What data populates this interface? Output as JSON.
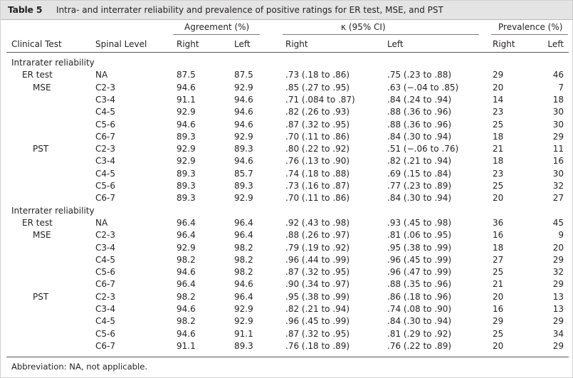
{
  "table": {
    "label": "Table 5",
    "title": "Intra- and interrater reliability and prevalence of positive ratings for ER test, MSE, and PST",
    "group_headers": {
      "agreement": "Agreement (%)",
      "kappa": "κ (95% CI)",
      "prevalence": "Prevalence (%)"
    },
    "columns": [
      "Clinical Test",
      "Spinal Level",
      "Right",
      "Left",
      "Right",
      "Left",
      "Right",
      "Left"
    ],
    "sections": [
      {
        "heading": "Intrarater reliability",
        "rows": [
          {
            "test": "ER test",
            "level": "NA",
            "ag_r": "87.5",
            "ag_l": "87.5",
            "k_r": ".73 (.18 to .86)",
            "k_l": ".75 (.23 to .88)",
            "p_r": "29",
            "p_l": "46"
          },
          {
            "test": "MSE",
            "level": "C2-3",
            "ag_r": "94.6",
            "ag_l": "92.9",
            "k_r": ".85 (.27 to .95)",
            "k_l": ".63 (−.04 to .85)",
            "p_r": "20",
            "p_l": "7"
          },
          {
            "test": "",
            "level": "C3-4",
            "ag_r": "91.1",
            "ag_l": "94.6",
            "k_r": ".71 (.084 to .87)",
            "k_l": ".84 (.24 to .94)",
            "p_r": "14",
            "p_l": "18"
          },
          {
            "test": "",
            "level": "C4-5",
            "ag_r": "92.9",
            "ag_l": "94.6",
            "k_r": ".82 (.26 to .93)",
            "k_l": ".88 (.36 to .96)",
            "p_r": "23",
            "p_l": "30"
          },
          {
            "test": "",
            "level": "C5-6",
            "ag_r": "94.6",
            "ag_l": "94.6",
            "k_r": ".87 (.32 to .95)",
            "k_l": ".88 (.36 to .96)",
            "p_r": "25",
            "p_l": "30"
          },
          {
            "test": "",
            "level": "C6-7",
            "ag_r": "89.3",
            "ag_l": "92.9",
            "k_r": ".70 (.11 to .86)",
            "k_l": ".84 (.30 to .94)",
            "p_r": "18",
            "p_l": "29"
          },
          {
            "test": "PST",
            "level": "C2-3",
            "ag_r": "92.9",
            "ag_l": "89.3",
            "k_r": ".80 (.22 to .92)",
            "k_l": ".51 (−.06 to .76)",
            "p_r": "21",
            "p_l": "11"
          },
          {
            "test": "",
            "level": "C3-4",
            "ag_r": "92.9",
            "ag_l": "94.6",
            "k_r": ".76 (.13 to .90)",
            "k_l": ".82 (.21 to .94)",
            "p_r": "18",
            "p_l": "16"
          },
          {
            "test": "",
            "level": "C4-5",
            "ag_r": "89.3",
            "ag_l": "85.7",
            "k_r": ".74 (.18 to .88)",
            "k_l": ".69 (.15 to .84)",
            "p_r": "23",
            "p_l": "30"
          },
          {
            "test": "",
            "level": "C5-6",
            "ag_r": "89.3",
            "ag_l": "89.3",
            "k_r": ".73 (.16 to .87)",
            "k_l": ".77 (.23 to .89)",
            "p_r": "25",
            "p_l": "32"
          },
          {
            "test": "",
            "level": "C6-7",
            "ag_r": "89.3",
            "ag_l": "92.9",
            "k_r": ".70 (.11 to .86)",
            "k_l": ".84 (.30 to .94)",
            "p_r": "20",
            "p_l": "27"
          }
        ]
      },
      {
        "heading": "Interrater reliability",
        "rows": [
          {
            "test": "ER test",
            "level": "NA",
            "ag_r": "96.4",
            "ag_l": "96.4",
            "k_r": ".92 (.43 to .98)",
            "k_l": ".93 (.45 to .98)",
            "p_r": "36",
            "p_l": "45"
          },
          {
            "test": "MSE",
            "level": "C2-3",
            "ag_r": "96.4",
            "ag_l": "96.4",
            "k_r": ".88 (.26 to .97)",
            "k_l": ".81 (.06 to .95)",
            "p_r": "16",
            "p_l": "9"
          },
          {
            "test": "",
            "level": "C3-4",
            "ag_r": "92.9",
            "ag_l": "98.2",
            "k_r": ".79 (.19 to .92)",
            "k_l": ".95 (.38 to .99)",
            "p_r": "18",
            "p_l": "20"
          },
          {
            "test": "",
            "level": "C4-5",
            "ag_r": "98.2",
            "ag_l": "98.2",
            "k_r": ".96 (.44 to .99)",
            "k_l": ".96 (.45 to .99)",
            "p_r": "27",
            "p_l": "29"
          },
          {
            "test": "",
            "level": "C5-6",
            "ag_r": "94.6",
            "ag_l": "98.2",
            "k_r": ".87 (.32 to .95)",
            "k_l": ".96 (.47 to .99)",
            "p_r": "25",
            "p_l": "32"
          },
          {
            "test": "",
            "level": "C6-7",
            "ag_r": "96.4",
            "ag_l": "94.6",
            "k_r": ".90 (.34 to .97)",
            "k_l": ".88 (.35 to .96)",
            "p_r": "21",
            "p_l": "29"
          },
          {
            "test": "PST",
            "level": "C2-3",
            "ag_r": "98.2",
            "ag_l": "96.4",
            "k_r": ".95 (.38 to .99)",
            "k_l": ".86 (.18 to .96)",
            "p_r": "20",
            "p_l": "13"
          },
          {
            "test": "",
            "level": "C3-4",
            "ag_r": "94.6",
            "ag_l": "92.9",
            "k_r": ".82 (.21 to .94)",
            "k_l": ".74 (.08 to .90)",
            "p_r": "16",
            "p_l": "13"
          },
          {
            "test": "",
            "level": "C4-5",
            "ag_r": "98.2",
            "ag_l": "92.9",
            "k_r": ".96 (.45 to .99)",
            "k_l": ".84 (.30 to .94)",
            "p_r": "29",
            "p_l": "29"
          },
          {
            "test": "",
            "level": "C5-6",
            "ag_r": "94.6",
            "ag_l": "91.1",
            "k_r": ".87 (.32 to .95)",
            "k_l": ".81 (.29 to .92)",
            "p_r": "25",
            "p_l": "34"
          },
          {
            "test": "",
            "level": "C6-7",
            "ag_r": "91.1",
            "ag_l": "89.3",
            "k_r": ".76 (.18 to .89)",
            "k_l": ".76 (.22 to .89)",
            "p_r": "20",
            "p_l": "29"
          }
        ]
      }
    ],
    "footnote": "Abbreviation: NA, not applicable."
  }
}
